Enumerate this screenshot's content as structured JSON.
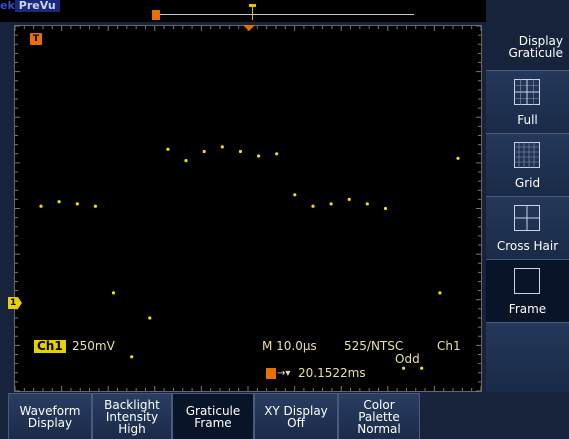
{
  "topbar": {
    "logo": "ek",
    "mode": "PreVu"
  },
  "markers": {
    "trigger_marker": "T",
    "channel_marker": "1"
  },
  "readouts": {
    "channel": "Ch1",
    "volts_per_div": "250mV",
    "timebase": "M 10.0µs",
    "standard": "525/NTSC",
    "field": "Odd",
    "trigger_source": "Ch1",
    "trigger_time": "20.1522ms"
  },
  "right_menu": {
    "header_line1": "Display",
    "header_line2": "Graticule",
    "buttons": [
      {
        "label": "Full",
        "selected": false
      },
      {
        "label": "Grid",
        "selected": false
      },
      {
        "label": "Cross Hair",
        "selected": false
      },
      {
        "label": "Frame",
        "selected": true
      }
    ]
  },
  "bottom_menu": [
    {
      "line1": "Waveform",
      "line2": "Display",
      "line3": ""
    },
    {
      "line1": "Backlight",
      "line2": "Intensity",
      "line3": "High"
    },
    {
      "line1": "Graticule",
      "line2": "Frame",
      "line3": "",
      "selected": true
    },
    {
      "line1": "XY Display",
      "line2": "Off",
      "line3": ""
    },
    {
      "line1": "Color",
      "line2": "Palette",
      "line3": "Normal"
    }
  ],
  "colors": {
    "trace": "#f0e000",
    "trigger": "#e87000",
    "background": "#16233a"
  },
  "waveform": {
    "volts_per_div": 0.25,
    "ground_level_divs_from_top": 7.5,
    "samples_divs_above_ground": [
      3.55,
      3.65,
      3.6,
      3.55,
      1.65,
      0.25,
      1.1,
      4.8,
      4.55,
      4.75,
      4.85,
      4.75,
      4.65,
      4.7,
      3.8,
      3.55,
      3.6,
      3.7,
      3.6,
      3.5,
      0,
      0,
      1.65,
      4.6
    ]
  }
}
